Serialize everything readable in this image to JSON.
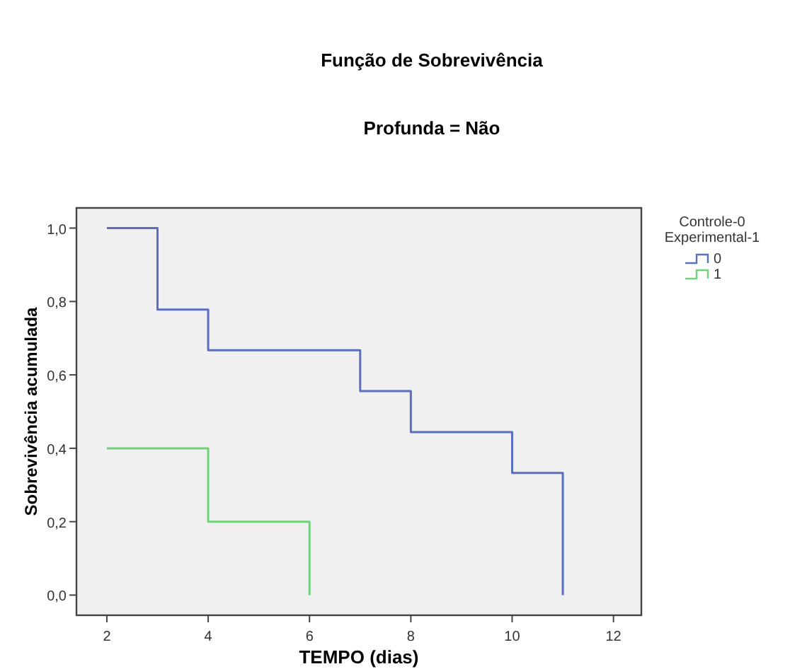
{
  "chart_data": {
    "type": "step",
    "title": "Função de Sobrevivência",
    "subtitle": "Profunda = Não",
    "xlabel": "TEMPO (dias)",
    "ylabel": "Sobrevivência acumulada",
    "legend_title": "Controle-0\nExperimental-1",
    "legend": "right",
    "xlim": [
      1.4,
      12.55
    ],
    "xticks": [
      2,
      4,
      6,
      8,
      10,
      12
    ],
    "ylim": [
      -0.055,
      1.055
    ],
    "yticks": [
      {
        "value": 0,
        "label": "0,0"
      },
      {
        "value": 0.2,
        "label": "0,2"
      },
      {
        "value": 0.4,
        "label": "0,4"
      },
      {
        "value": 0.6,
        "label": "0,6"
      },
      {
        "value": 0.8,
        "label": "0,8"
      },
      {
        "value": 1,
        "label": "1,0"
      }
    ],
    "grid": false,
    "series": [
      {
        "name": "0",
        "color": "#5a6fc0",
        "x": [
          2,
          3,
          4,
          7,
          8,
          10,
          11
        ],
        "values": [
          1,
          0.778,
          0.667,
          0.556,
          0.444,
          0.333,
          0
        ]
      },
      {
        "name": "1",
        "color": "#6fd37a",
        "x": [
          2,
          4,
          6
        ],
        "values": [
          0.4,
          0.2,
          0
        ]
      }
    ]
  }
}
